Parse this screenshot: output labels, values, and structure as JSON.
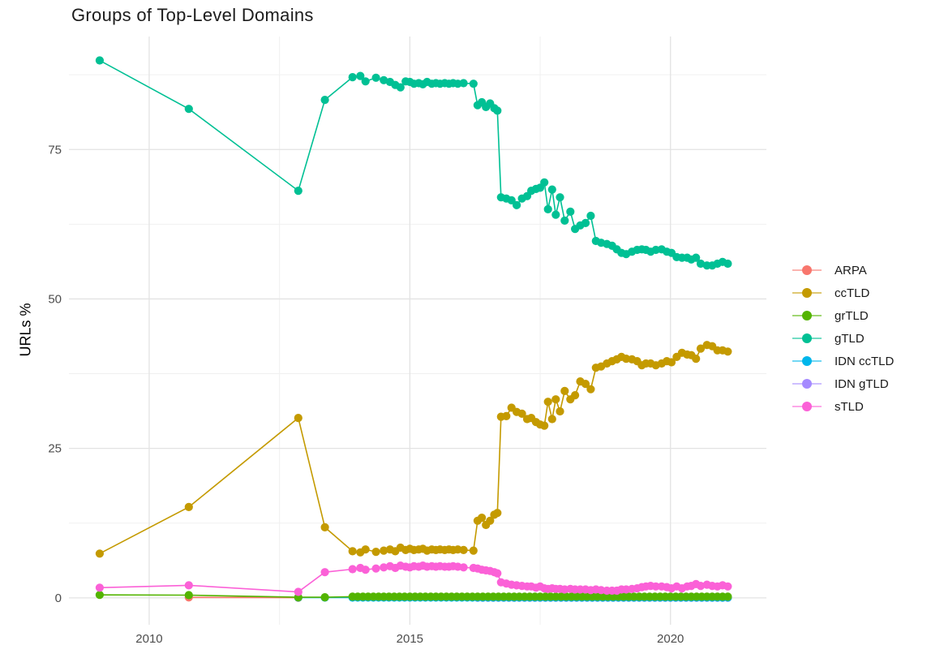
{
  "title": "Groups of Top-Level Domains",
  "chart_data": {
    "type": "line",
    "title": "Groups of Top-Level Domains",
    "xlabel": "",
    "ylabel": "URLs %",
    "x_ticks": [
      2010,
      2015,
      2020
    ],
    "x_minor_ticks": [
      2012.5,
      2017.5
    ],
    "y_ticks": [
      0,
      25,
      50,
      75
    ],
    "y_minor_ticks": [
      12.5,
      37.5,
      62.5,
      87.5
    ],
    "xlim": [
      2008.46,
      2021.84
    ],
    "ylim": [
      -4.5,
      93.9
    ],
    "grid": true,
    "legend_position": "right",
    "legend": [
      {
        "label": "ARPA",
        "color": "#F8766D"
      },
      {
        "label": "ccTLD",
        "color": "#C49A00"
      },
      {
        "label": "grTLD",
        "color": "#53B400"
      },
      {
        "label": "gTLD",
        "color": "#00C094"
      },
      {
        "label": "IDN ccTLD",
        "color": "#00B6EB"
      },
      {
        "label": "IDN gTLD",
        "color": "#A58AFF"
      },
      {
        "label": "sTLD",
        "color": "#FB61D7"
      }
    ],
    "series": [
      {
        "name": "ARPA",
        "color": "#F8766D",
        "points": [
          [
            2010.76,
            0.07
          ],
          [
            2012.86,
            0.03
          ]
        ]
      },
      {
        "name": "IDN gTLD",
        "color": "#A58AFF",
        "points": [],
        "flat": {
          "from": 2016.3,
          "to": 2021.1,
          "step": 0.1,
          "y": 0.02
        }
      },
      {
        "name": "IDN ccTLD",
        "color": "#00B6EB",
        "points": [
          [
            2012.86,
            0.05
          ],
          [
            2013.37,
            0.05
          ]
        ],
        "flat": {
          "from": 2013.9,
          "to": 2021.1,
          "step": 0.1,
          "y": 0.05
        }
      },
      {
        "name": "grTLD",
        "color": "#53B400",
        "points": [
          [
            2009.05,
            0.5
          ],
          [
            2010.76,
            0.45
          ],
          [
            2012.86,
            0.1
          ],
          [
            2013.37,
            0.1
          ]
        ],
        "flat": {
          "from": 2013.9,
          "to": 2021.1,
          "step": 0.1,
          "y": 0.2
        }
      },
      {
        "name": "ccTLD",
        "color": "#C49A00",
        "points": [
          [
            2009.05,
            7.4
          ],
          [
            2010.76,
            15.2
          ],
          [
            2012.86,
            30.1
          ],
          [
            2013.37,
            11.8
          ],
          [
            2013.9,
            7.8
          ],
          [
            2014.05,
            7.6
          ],
          [
            2014.15,
            8.1
          ],
          [
            2014.35,
            7.7
          ],
          [
            2014.5,
            7.9
          ],
          [
            2014.62,
            8.1
          ],
          [
            2014.72,
            7.8
          ],
          [
            2014.82,
            8.4
          ],
          [
            2014.92,
            8.0
          ],
          [
            2015.0,
            8.2
          ],
          [
            2015.08,
            8.0
          ],
          [
            2015.17,
            8.1
          ],
          [
            2015.25,
            8.2
          ],
          [
            2015.33,
            7.9
          ],
          [
            2015.42,
            8.1
          ],
          [
            2015.5,
            8.0
          ],
          [
            2015.58,
            8.1
          ],
          [
            2015.67,
            8.0
          ],
          [
            2015.75,
            8.1
          ],
          [
            2015.83,
            8.0
          ],
          [
            2015.92,
            8.1
          ],
          [
            2016.03,
            8.0
          ],
          [
            2016.22,
            7.9
          ],
          [
            2016.3,
            12.9
          ],
          [
            2016.38,
            13.4
          ],
          [
            2016.46,
            12.2
          ],
          [
            2016.54,
            12.9
          ],
          [
            2016.62,
            13.9
          ],
          [
            2016.68,
            14.2
          ],
          [
            2016.75,
            30.3
          ],
          [
            2016.85,
            30.4
          ],
          [
            2016.95,
            31.8
          ],
          [
            2017.05,
            31.1
          ],
          [
            2017.15,
            30.8
          ],
          [
            2017.25,
            29.9
          ],
          [
            2017.33,
            30.1
          ],
          [
            2017.42,
            29.4
          ],
          [
            2017.5,
            29.0
          ],
          [
            2017.58,
            28.8
          ],
          [
            2017.65,
            32.8
          ],
          [
            2017.73,
            29.9
          ],
          [
            2017.8,
            33.2
          ],
          [
            2017.88,
            31.2
          ],
          [
            2017.97,
            34.6
          ],
          [
            2018.08,
            33.2
          ],
          [
            2018.17,
            33.9
          ],
          [
            2018.27,
            36.2
          ],
          [
            2018.37,
            35.8
          ],
          [
            2018.47,
            34.9
          ],
          [
            2018.57,
            38.5
          ],
          [
            2018.67,
            38.7
          ],
          [
            2018.78,
            39.2
          ],
          [
            2018.88,
            39.6
          ],
          [
            2018.97,
            39.9
          ],
          [
            2019.06,
            40.3
          ],
          [
            2019.15,
            40.0
          ],
          [
            2019.26,
            39.9
          ],
          [
            2019.36,
            39.6
          ],
          [
            2019.45,
            38.9
          ],
          [
            2019.53,
            39.2
          ],
          [
            2019.62,
            39.2
          ],
          [
            2019.72,
            38.9
          ],
          [
            2019.83,
            39.2
          ],
          [
            2019.93,
            39.6
          ],
          [
            2020.02,
            39.4
          ],
          [
            2020.12,
            40.3
          ],
          [
            2020.22,
            41.0
          ],
          [
            2020.32,
            40.7
          ],
          [
            2020.4,
            40.6
          ],
          [
            2020.49,
            40.0
          ],
          [
            2020.58,
            41.7
          ],
          [
            2020.7,
            42.3
          ],
          [
            2020.8,
            42.1
          ],
          [
            2020.9,
            41.4
          ],
          [
            2021.0,
            41.4
          ],
          [
            2021.1,
            41.2
          ]
        ]
      },
      {
        "name": "gTLD",
        "color": "#00C094",
        "points": [
          [
            2009.05,
            89.9
          ],
          [
            2010.76,
            81.8
          ],
          [
            2012.86,
            68.1
          ],
          [
            2013.37,
            83.3
          ],
          [
            2013.9,
            87.1
          ],
          [
            2014.05,
            87.3
          ],
          [
            2014.15,
            86.4
          ],
          [
            2014.35,
            87.0
          ],
          [
            2014.5,
            86.6
          ],
          [
            2014.62,
            86.3
          ],
          [
            2014.72,
            85.8
          ],
          [
            2014.82,
            85.4
          ],
          [
            2014.92,
            86.4
          ],
          [
            2015.0,
            86.3
          ],
          [
            2015.08,
            86.0
          ],
          [
            2015.17,
            86.1
          ],
          [
            2015.25,
            85.9
          ],
          [
            2015.33,
            86.3
          ],
          [
            2015.42,
            86.0
          ],
          [
            2015.5,
            86.1
          ],
          [
            2015.58,
            86.0
          ],
          [
            2015.67,
            86.1
          ],
          [
            2015.75,
            86.0
          ],
          [
            2015.83,
            86.1
          ],
          [
            2015.92,
            86.0
          ],
          [
            2016.03,
            86.1
          ],
          [
            2016.22,
            86.0
          ],
          [
            2016.3,
            82.4
          ],
          [
            2016.38,
            82.9
          ],
          [
            2016.46,
            82.1
          ],
          [
            2016.54,
            82.7
          ],
          [
            2016.62,
            81.9
          ],
          [
            2016.68,
            81.5
          ],
          [
            2016.75,
            67.0
          ],
          [
            2016.85,
            66.8
          ],
          [
            2016.95,
            66.5
          ],
          [
            2017.05,
            65.7
          ],
          [
            2017.15,
            66.8
          ],
          [
            2017.25,
            67.2
          ],
          [
            2017.33,
            68.1
          ],
          [
            2017.42,
            68.4
          ],
          [
            2017.5,
            68.6
          ],
          [
            2017.58,
            69.5
          ],
          [
            2017.65,
            65.0
          ],
          [
            2017.73,
            68.3
          ],
          [
            2017.8,
            64.1
          ],
          [
            2017.88,
            67.0
          ],
          [
            2017.97,
            63.1
          ],
          [
            2018.08,
            64.6
          ],
          [
            2018.17,
            61.7
          ],
          [
            2018.27,
            62.3
          ],
          [
            2018.37,
            62.7
          ],
          [
            2018.47,
            63.9
          ],
          [
            2018.57,
            59.7
          ],
          [
            2018.67,
            59.4
          ],
          [
            2018.78,
            59.2
          ],
          [
            2018.88,
            58.9
          ],
          [
            2018.97,
            58.3
          ],
          [
            2019.06,
            57.7
          ],
          [
            2019.15,
            57.5
          ],
          [
            2019.26,
            57.9
          ],
          [
            2019.36,
            58.2
          ],
          [
            2019.45,
            58.3
          ],
          [
            2019.53,
            58.2
          ],
          [
            2019.62,
            57.9
          ],
          [
            2019.72,
            58.2
          ],
          [
            2019.83,
            58.3
          ],
          [
            2019.93,
            57.9
          ],
          [
            2020.02,
            57.7
          ],
          [
            2020.12,
            57.0
          ],
          [
            2020.22,
            56.9
          ],
          [
            2020.32,
            56.9
          ],
          [
            2020.4,
            56.6
          ],
          [
            2020.49,
            56.9
          ],
          [
            2020.58,
            55.9
          ],
          [
            2020.7,
            55.6
          ],
          [
            2020.8,
            55.6
          ],
          [
            2020.9,
            55.9
          ],
          [
            2021.0,
            56.2
          ],
          [
            2021.1,
            55.9
          ]
        ]
      },
      {
        "name": "sTLD",
        "color": "#FB61D7",
        "points": [
          [
            2009.05,
            1.7
          ],
          [
            2010.76,
            2.1
          ],
          [
            2012.86,
            1.0
          ],
          [
            2013.37,
            4.3
          ],
          [
            2013.9,
            4.8
          ],
          [
            2014.05,
            5.0
          ],
          [
            2014.15,
            4.7
          ],
          [
            2014.35,
            4.9
          ],
          [
            2014.5,
            5.1
          ],
          [
            2014.62,
            5.3
          ],
          [
            2014.72,
            5.0
          ],
          [
            2014.82,
            5.4
          ],
          [
            2014.92,
            5.2
          ],
          [
            2015.0,
            5.1
          ],
          [
            2015.08,
            5.3
          ],
          [
            2015.17,
            5.2
          ],
          [
            2015.25,
            5.4
          ],
          [
            2015.33,
            5.2
          ],
          [
            2015.42,
            5.3
          ],
          [
            2015.5,
            5.2
          ],
          [
            2015.58,
            5.3
          ],
          [
            2015.67,
            5.2
          ],
          [
            2015.75,
            5.2
          ],
          [
            2015.83,
            5.3
          ],
          [
            2015.92,
            5.2
          ],
          [
            2016.03,
            5.1
          ],
          [
            2016.22,
            5.0
          ],
          [
            2016.3,
            4.9
          ],
          [
            2016.38,
            4.7
          ],
          [
            2016.46,
            4.6
          ],
          [
            2016.54,
            4.5
          ],
          [
            2016.62,
            4.3
          ],
          [
            2016.68,
            4.1
          ],
          [
            2016.75,
            2.6
          ],
          [
            2016.85,
            2.4
          ],
          [
            2016.95,
            2.2
          ],
          [
            2017.05,
            2.1
          ],
          [
            2017.15,
            2.0
          ],
          [
            2017.25,
            1.9
          ],
          [
            2017.33,
            1.9
          ],
          [
            2017.42,
            1.7
          ],
          [
            2017.5,
            1.9
          ],
          [
            2017.58,
            1.6
          ],
          [
            2017.65,
            1.5
          ],
          [
            2017.73,
            1.6
          ],
          [
            2017.8,
            1.5
          ],
          [
            2017.88,
            1.5
          ],
          [
            2017.97,
            1.4
          ],
          [
            2018.08,
            1.5
          ],
          [
            2018.17,
            1.4
          ],
          [
            2018.27,
            1.4
          ],
          [
            2018.37,
            1.4
          ],
          [
            2018.47,
            1.3
          ],
          [
            2018.57,
            1.4
          ],
          [
            2018.67,
            1.3
          ],
          [
            2018.78,
            1.2
          ],
          [
            2018.88,
            1.2
          ],
          [
            2018.97,
            1.2
          ],
          [
            2019.06,
            1.4
          ],
          [
            2019.15,
            1.4
          ],
          [
            2019.26,
            1.5
          ],
          [
            2019.36,
            1.6
          ],
          [
            2019.45,
            1.8
          ],
          [
            2019.53,
            1.9
          ],
          [
            2019.62,
            2.0
          ],
          [
            2019.72,
            1.9
          ],
          [
            2019.83,
            1.9
          ],
          [
            2019.93,
            1.8
          ],
          [
            2020.02,
            1.6
          ],
          [
            2020.12,
            1.9
          ],
          [
            2020.22,
            1.6
          ],
          [
            2020.32,
            1.9
          ],
          [
            2020.4,
            2.0
          ],
          [
            2020.49,
            2.3
          ],
          [
            2020.58,
            2.0
          ],
          [
            2020.7,
            2.2
          ],
          [
            2020.8,
            2.0
          ],
          [
            2020.9,
            1.9
          ],
          [
            2021.0,
            2.1
          ],
          [
            2021.1,
            1.9
          ]
        ]
      }
    ]
  },
  "style": {
    "background": "#FFFFFF",
    "grid_major_color": "#E3E3E3",
    "grid_minor_color": "#F0F0F0",
    "tick_label_color": "#4D4D4D",
    "title_color": "#1C1C1C"
  }
}
